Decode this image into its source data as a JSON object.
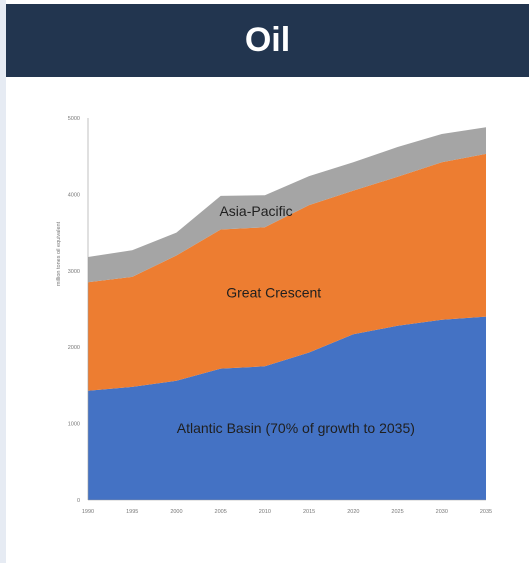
{
  "header": {
    "title": "Oil"
  },
  "chart_data": {
    "type": "area",
    "stacked": true,
    "title": "",
    "xlabel": "",
    "ylabel": "million tones oil equivalent",
    "x": [
      1990,
      1995,
      2000,
      2005,
      2010,
      2015,
      2020,
      2025,
      2030,
      2035
    ],
    "xlim": [
      1990,
      2035
    ],
    "ylim": [
      0,
      5000
    ],
    "y_ticks": [
      0,
      1000,
      2000,
      3000,
      4000,
      5000
    ],
    "series": [
      {
        "name": "Atlantic Basin (70% of growth to 2035)",
        "color": "#4472c4",
        "values": [
          1430,
          1480,
          1560,
          1720,
          1750,
          1930,
          2170,
          2280,
          2360,
          2400
        ]
      },
      {
        "name": "Great Crescent",
        "color": "#ed7d31",
        "values": [
          1420,
          1440,
          1640,
          1820,
          1820,
          1930,
          1880,
          1950,
          2060,
          2130
        ]
      },
      {
        "name": "Asia-Pacific",
        "color": "#a5a5a5",
        "values": [
          330,
          350,
          300,
          440,
          420,
          380,
          370,
          390,
          370,
          350
        ]
      }
    ],
    "grid": false,
    "legend": "none"
  }
}
